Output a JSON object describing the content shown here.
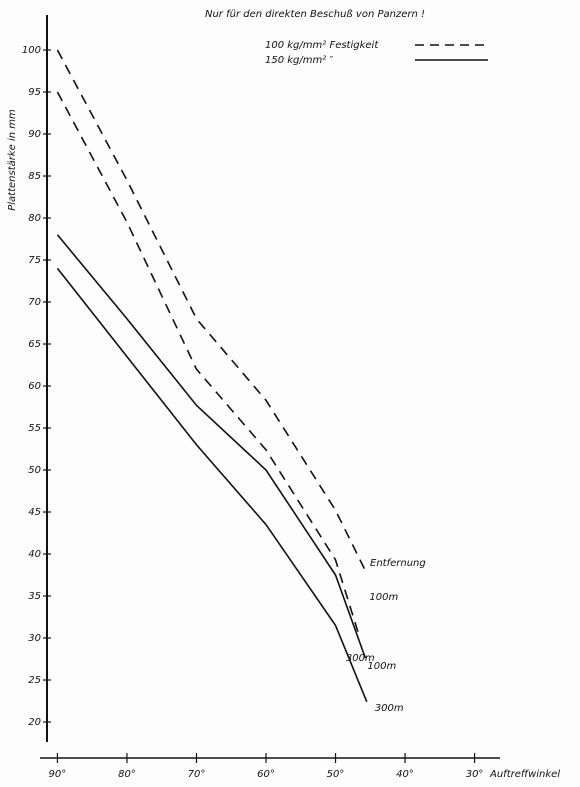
{
  "chart_data": {
    "type": "line",
    "title": "Nur für den direkten Beschuß von Panzern !",
    "ylabel": "Plattenstärke in mm",
    "xlabel": "Auftreffwinkel",
    "annotation": "Entfernung",
    "legend": [
      {
        "label": "100 kg/mm² Festigkeit",
        "dashed": true
      },
      {
        "label": "150 kg/mm²  ″",
        "dashed": false
      }
    ],
    "xlim": [
      91.5,
      28.5
    ],
    "ylim": [
      18,
      102
    ],
    "xticks": [
      {
        "value": 90,
        "label": "90°"
      },
      {
        "value": 80,
        "label": "80°"
      },
      {
        "value": 70,
        "label": "70°"
      },
      {
        "value": 60,
        "label": "60°"
      },
      {
        "value": 50,
        "label": "50°"
      },
      {
        "value": 40,
        "label": "40°"
      },
      {
        "value": 30,
        "label": "30°"
      }
    ],
    "yticks": [
      20,
      25,
      30,
      35,
      40,
      45,
      50,
      55,
      60,
      65,
      70,
      75,
      80,
      85,
      90,
      95,
      100
    ],
    "color": "#111111",
    "series": [
      {
        "name": "100m",
        "dashed": true,
        "x": [
          90,
          80,
          70,
          60,
          50,
          45.7
        ],
        "values": [
          100,
          84.5,
          68,
          58.3,
          45.2,
          38
        ]
      },
      {
        "name": "300m",
        "dashed": true,
        "x": [
          90,
          80,
          70,
          60,
          50,
          46.5
        ],
        "values": [
          95,
          79.5,
          62,
          52.4,
          39.3,
          30
        ]
      },
      {
        "name": "100m",
        "dashed": false,
        "x": [
          90,
          80,
          70,
          60,
          50,
          45.7
        ],
        "values": [
          78,
          68,
          57.7,
          50,
          37.5,
          27.6
        ]
      },
      {
        "name": "300m",
        "dashed": false,
        "x": [
          90,
          80,
          70,
          60,
          50,
          45.5
        ],
        "values": [
          74,
          63.5,
          53,
          43.5,
          31.5,
          22.4
        ]
      }
    ]
  }
}
